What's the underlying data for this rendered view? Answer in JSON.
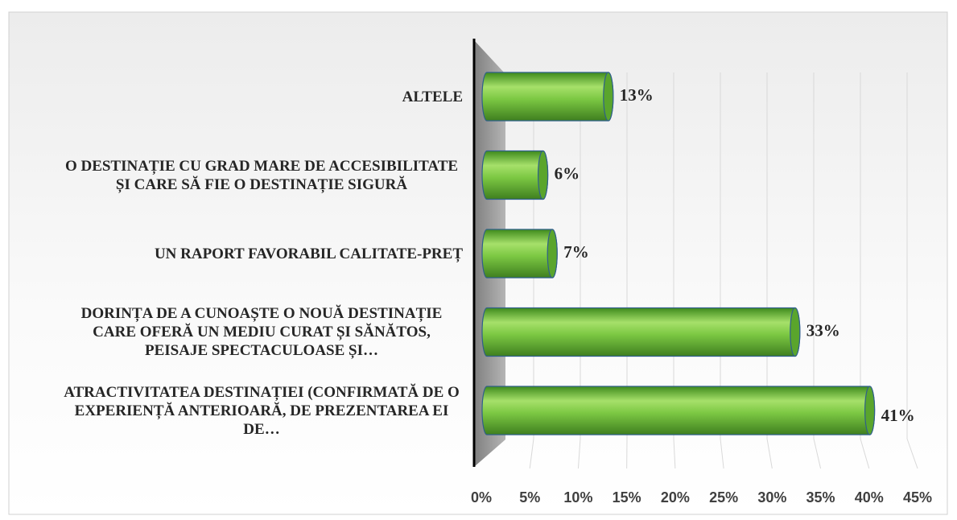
{
  "chart_data": {
    "type": "bar3d",
    "categories": [
      "ATRACTIVITATEA DESTINAȚIEI (CONFIRMATĂ DE O EXPERIENȚĂ ANTERIOARĂ, DE PREZENTAREA EI DE…",
      "DORINȚA DE A CUNOAȘTE O NOUĂ DESTINAȚIE CARE OFERĂ UN MEDIU CURAT ȘI SĂNĂTOS, PEISAJE SPECTACULOASE ȘI…",
      "UN RAPORT FAVORABIL CALITATE-PREȚ",
      "O DESTINAȚIE CU GRAD MARE DE ACCESIBILITATE ȘI CARE SĂ FIE O DESTINAȚIE SIGURĂ",
      "ALTELE"
    ],
    "values": [
      41,
      33,
      7,
      6,
      13
    ],
    "value_labels": [
      "41%",
      "33%",
      "7%",
      "6%",
      "13%"
    ],
    "color": "#6fbf3a",
    "xlim": [
      0,
      45
    ],
    "xticks": [
      {
        "value": 0,
        "label": "0%"
      },
      {
        "value": 5,
        "label": "5%"
      },
      {
        "value": 10,
        "label": "10%"
      },
      {
        "value": 15,
        "label": "15%"
      },
      {
        "value": 20,
        "label": "20%"
      },
      {
        "value": 25,
        "label": "25%"
      },
      {
        "value": 30,
        "label": "30%"
      },
      {
        "value": 35,
        "label": "35%"
      },
      {
        "value": 40,
        "label": "40%"
      },
      {
        "value": 45,
        "label": "45%"
      }
    ],
    "grid": true
  }
}
